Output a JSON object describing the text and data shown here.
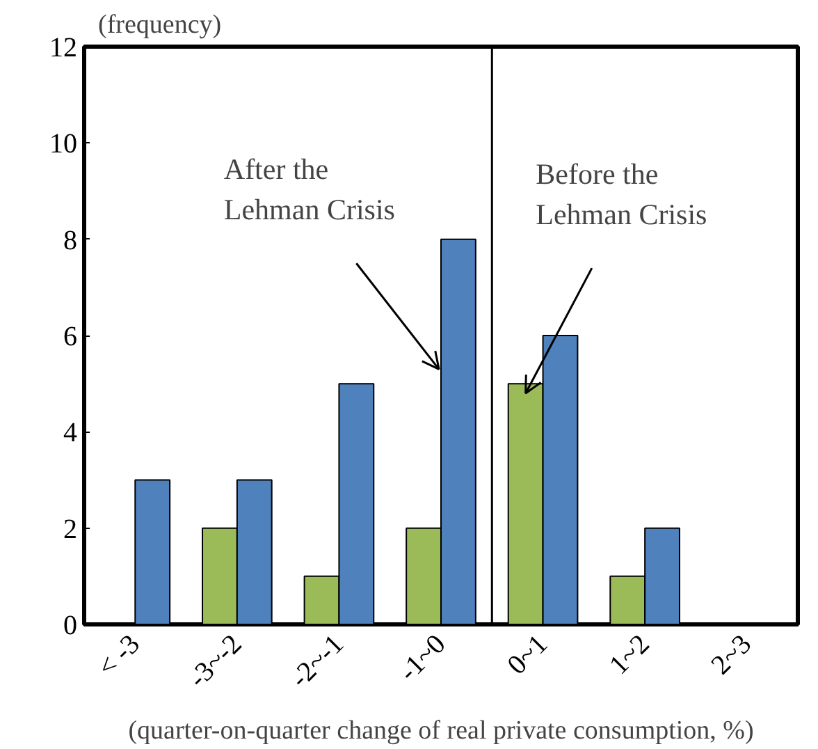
{
  "chart_data": {
    "type": "bar",
    "ylabel": "(frequency)",
    "xlabel": "(quarter-on-quarter change of real private consumption, %)",
    "categories": [
      "< -3",
      "-3~-2",
      "-2~-1",
      "-1~0",
      "0~1",
      "1~2",
      "2~3"
    ],
    "series": [
      {
        "name": "Before the\nLehman Crisis",
        "color": "#9bbb59",
        "values": [
          0,
          2,
          1,
          2,
          5,
          1,
          0
        ]
      },
      {
        "name": "After the\nLehman Crisis",
        "color": "#4f81bd",
        "values": [
          3,
          3,
          5,
          8,
          6,
          2,
          0
        ]
      }
    ],
    "ylim": [
      0,
      12
    ],
    "yticks": [
      0,
      2,
      4,
      6,
      8,
      10,
      12
    ],
    "grid": false,
    "legend": false
  }
}
